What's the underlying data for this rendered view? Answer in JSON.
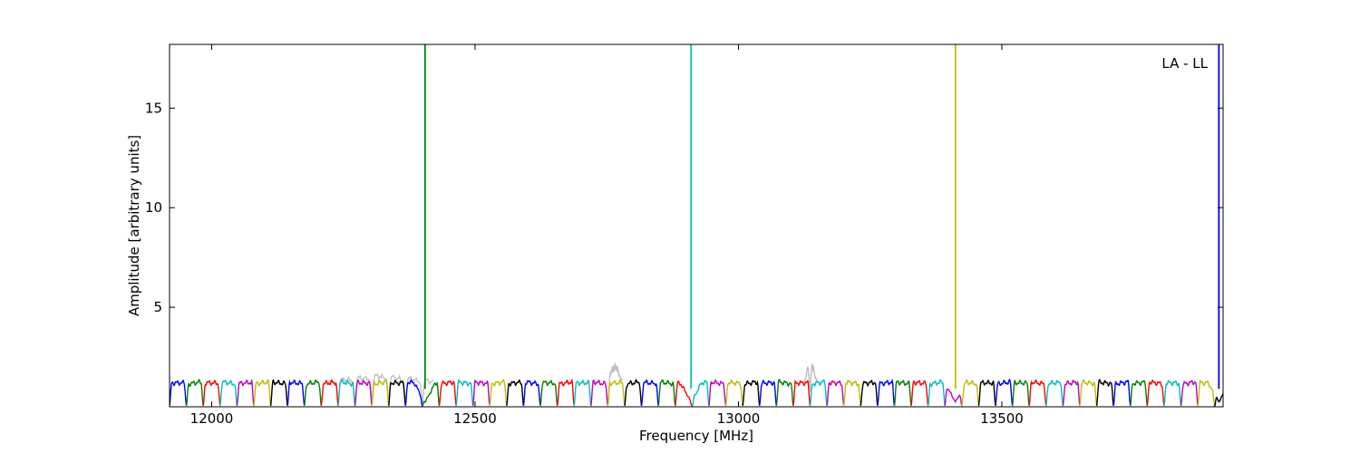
{
  "chart_data": {
    "type": "line",
    "title": "",
    "xlabel": "Frequency [MHz]",
    "ylabel": "Amplitude [arbitrary units]",
    "annotation": "LA - LL",
    "xlim": [
      11920,
      13920
    ],
    "ylim": [
      0,
      18.2
    ],
    "x_ticks": [
      12000,
      12500,
      13000,
      13500
    ],
    "y_ticks": [
      5,
      10,
      15
    ],
    "grid": false,
    "legend": "none",
    "channel_width_mhz": 32,
    "channel_colors": [
      "#0000ff",
      "#008000",
      "#ff0000",
      "#00bfbf",
      "#bf00bf",
      "#bfbf00",
      "#000000"
    ],
    "background_color": "#c0c0c0",
    "background_bursts": [
      {
        "x_start": 12220,
        "x_end": 12420,
        "peak": 1.5
      },
      {
        "x_start": 12750,
        "x_end": 12780,
        "peak": 2.2
      },
      {
        "x_start": 13125,
        "x_end": 13150,
        "peak": 2.4
      }
    ],
    "spikes": [
      {
        "x": 12405,
        "y": 18.2,
        "color": "#008000"
      },
      {
        "x": 12910,
        "y": 18.2,
        "color": "#00bfbf"
      },
      {
        "x": 13412,
        "y": 18.2,
        "color": "#bfbf00"
      },
      {
        "x": 13912,
        "y": 18.2,
        "color": "#0000ff"
      }
    ]
  }
}
